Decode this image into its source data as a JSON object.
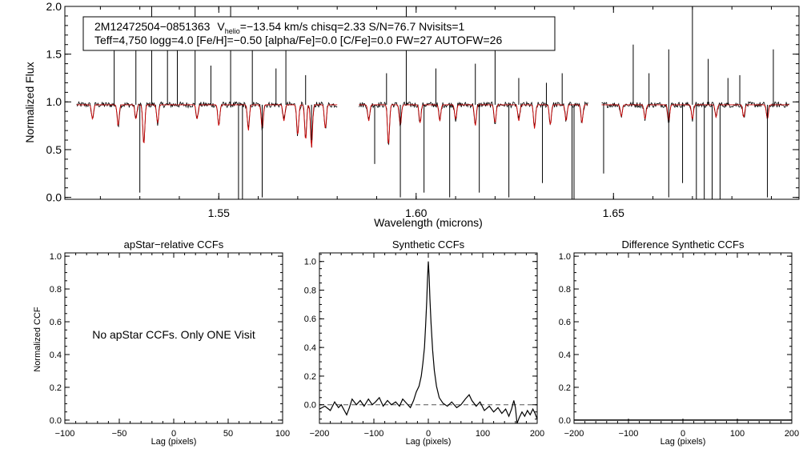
{
  "colors": {
    "observed": "#000000",
    "model": "#cc0000",
    "dash": "#555555"
  },
  "chart_data": [
    {
      "type": "line",
      "id": "spectrum",
      "title": "",
      "xlabel": "Wavelength (microns)",
      "ylabel": "Normalized Flux",
      "xlim": [
        1.511,
        1.697
      ],
      "ylim": [
        -0.02,
        2.0
      ],
      "xticks": [
        1.55,
        1.6,
        1.65
      ],
      "xtick_labels": [
        "1.55",
        "1.60",
        "1.65"
      ],
      "yticks": [
        0.0,
        0.5,
        1.0,
        1.5,
        2.0
      ],
      "ytick_labels": [
        "0.0",
        "0.5",
        "1.0",
        "1.5",
        "2.0"
      ],
      "chips": [
        [
          1.514,
          1.58
        ],
        [
          1.5855,
          1.6435
        ],
        [
          1.647,
          1.6945
        ]
      ],
      "annotation": {
        "line1_star": "2M12472504−0851363",
        "line1_v": "V",
        "line1_v_sub": "helio",
        "line1_rest": "=−13.54 km/s  chisq=2.33  S/N=76.7  Nvisits=1",
        "line2": "Teff=4,750 logg=4.0 [Fe/H]=−0.50 [alpha/Fe]=0.0 [C/Fe]=0.0 FW=27 AUTOFW=26"
      },
      "series": [
        {
          "name": "observed",
          "continuum": 0.97
        },
        {
          "name": "model",
          "continuum": 0.97
        }
      ],
      "emission_spikes": [
        [
          1.5235,
          1.55
        ],
        [
          1.529,
          1.75
        ],
        [
          1.533,
          2.0
        ],
        [
          1.537,
          1.62
        ],
        [
          1.5395,
          1.85
        ],
        [
          1.544,
          2.0
        ],
        [
          1.548,
          1.38
        ],
        [
          1.553,
          2.0
        ],
        [
          1.5585,
          1.55
        ],
        [
          1.5645,
          1.35
        ],
        [
          1.567,
          1.65
        ],
        [
          1.572,
          1.28
        ],
        [
          1.5925,
          1.3
        ],
        [
          1.5975,
          2.0
        ],
        [
          1.605,
          1.35
        ],
        [
          1.615,
          1.4
        ],
        [
          1.62,
          1.75
        ],
        [
          1.626,
          1.25
        ],
        [
          1.633,
          1.2
        ],
        [
          1.637,
          1.3
        ],
        [
          1.655,
          1.6
        ],
        [
          1.659,
          1.3
        ],
        [
          1.664,
          1.55
        ],
        [
          1.67,
          2.0
        ],
        [
          1.674,
          1.45
        ],
        [
          1.679,
          1.25
        ],
        [
          1.682,
          1.28
        ],
        [
          1.6905,
          1.55
        ]
      ],
      "deep_absorptions": [
        [
          1.53,
          0.05
        ],
        [
          1.555,
          -0.02
        ],
        [
          1.556,
          -0.02
        ],
        [
          1.561,
          0.0
        ],
        [
          1.5735,
          0.6
        ],
        [
          1.5895,
          0.35
        ],
        [
          1.596,
          0.0
        ],
        [
          1.602,
          0.05
        ],
        [
          1.6085,
          0.0
        ],
        [
          1.616,
          0.05
        ],
        [
          1.6235,
          0.0
        ],
        [
          1.632,
          0.15
        ],
        [
          1.6395,
          -0.02
        ],
        [
          1.64,
          -0.02
        ],
        [
          1.6475,
          0.25
        ],
        [
          1.664,
          0.0
        ],
        [
          1.6675,
          0.15
        ],
        [
          1.671,
          -0.02
        ],
        [
          1.673,
          -0.02
        ],
        [
          1.675,
          -0.02
        ],
        [
          1.677,
          -0.02
        ],
        [
          1.689,
          0.0
        ]
      ],
      "model_absorptions": [
        [
          1.518,
          0.82
        ],
        [
          1.5245,
          0.75
        ],
        [
          1.529,
          0.82
        ],
        [
          1.531,
          0.55
        ],
        [
          1.5345,
          0.78
        ],
        [
          1.5445,
          0.82
        ],
        [
          1.55,
          0.75
        ],
        [
          1.5575,
          0.7
        ],
        [
          1.561,
          0.72
        ],
        [
          1.5665,
          0.8
        ],
        [
          1.57,
          0.65
        ],
        [
          1.572,
          0.6
        ],
        [
          1.5735,
          0.52
        ],
        [
          1.577,
          0.72
        ],
        [
          1.588,
          0.8
        ],
        [
          1.593,
          0.55
        ],
        [
          1.596,
          0.75
        ],
        [
          1.601,
          0.78
        ],
        [
          1.606,
          0.8
        ],
        [
          1.61,
          0.82
        ],
        [
          1.615,
          0.75
        ],
        [
          1.62,
          0.78
        ],
        [
          1.626,
          0.8
        ],
        [
          1.63,
          0.72
        ],
        [
          1.634,
          0.76
        ],
        [
          1.638,
          0.8
        ],
        [
          1.642,
          0.78
        ],
        [
          1.652,
          0.85
        ],
        [
          1.658,
          0.82
        ],
        [
          1.664,
          0.8
        ],
        [
          1.67,
          0.82
        ],
        [
          1.676,
          0.84
        ],
        [
          1.683,
          0.84
        ],
        [
          1.689,
          0.82
        ]
      ]
    },
    {
      "type": "line",
      "id": "apstar-ccf",
      "title": "apStar−relative CCFs",
      "xlabel": "Lag (pixels)",
      "ylabel": "Normalized CCF",
      "xlim": [
        -100,
        100
      ],
      "ylim": [
        -0.02,
        1.02
      ],
      "xticks": [
        -100,
        -50,
        0,
        50,
        100
      ],
      "xtick_labels": [
        "−100",
        "−50",
        "0",
        "50",
        "100"
      ],
      "yticks": [
        0.0,
        0.2,
        0.4,
        0.6,
        0.8,
        1.0
      ],
      "ytick_labels": [
        "0.0",
        "0.2",
        "0.4",
        "0.6",
        "0.8",
        "1.0"
      ],
      "message": "No apStar CCFs.  Only ONE Visit"
    },
    {
      "type": "line",
      "id": "synthetic-ccf",
      "title": "Synthetic CCFs",
      "xlabel": "Lag (pixels)",
      "ylabel": "",
      "xlim": [
        -200,
        200
      ],
      "ylim": [
        -0.13,
        1.06
      ],
      "xticks": [
        -200,
        -100,
        0,
        100,
        200
      ],
      "xtick_labels": [
        "−200",
        "−100",
        "0",
        "100",
        "200"
      ],
      "yticks": [
        0.0,
        0.2,
        0.4,
        0.6,
        0.8,
        1.0
      ],
      "ytick_labels": [
        "0.0",
        "0.2",
        "0.4",
        "0.6",
        "0.8",
        "1.0"
      ],
      "zero_line": 0.0,
      "series": [
        {
          "name": "ccf",
          "x": [
            -200,
            -190,
            -180,
            -172,
            -165,
            -160,
            -150,
            -145,
            -140,
            -132,
            -125,
            -118,
            -110,
            -103,
            -97,
            -90,
            -83,
            -75,
            -68,
            -60,
            -53,
            -47,
            -40,
            -33,
            -27,
            -22,
            -17,
            -13,
            -10,
            -7,
            -5,
            -3,
            -1.5,
            0,
            1.5,
            3,
            5,
            8,
            11,
            15,
            20,
            27,
            35,
            43,
            52,
            60,
            68,
            75,
            80,
            88,
            95,
            103,
            112,
            120,
            128,
            135,
            142,
            148,
            153,
            157,
            160,
            163,
            167,
            172,
            177,
            182,
            187,
            192,
            196,
            200
          ],
          "y": [
            -0.03,
            -0.01,
            -0.04,
            0.02,
            -0.02,
            0.0,
            -0.07,
            -0.02,
            0.04,
            0.0,
            0.03,
            -0.01,
            0.04,
            0.0,
            0.02,
            0.05,
            -0.01,
            0.03,
            0.0,
            0.02,
            -0.01,
            0.04,
            0.01,
            -0.02,
            0.03,
            0.09,
            0.13,
            0.2,
            0.29,
            0.4,
            0.55,
            0.72,
            0.88,
            1.0,
            0.9,
            0.74,
            0.57,
            0.38,
            0.24,
            0.13,
            0.05,
            0.01,
            -0.01,
            0.02,
            -0.02,
            0.0,
            0.04,
            0.07,
            0.03,
            -0.01,
            0.02,
            -0.04,
            -0.01,
            -0.05,
            -0.02,
            -0.06,
            -0.03,
            -0.08,
            -0.03,
            0.03,
            -0.02,
            -0.13,
            -0.09,
            -0.05,
            -0.08,
            -0.04,
            -0.07,
            -0.03,
            -0.06,
            -0.1
          ]
        }
      ]
    },
    {
      "type": "line",
      "id": "difference-ccf",
      "title": "Difference Synthetic CCFs",
      "xlabel": "Lag (pixels)",
      "ylabel": "",
      "xlim": [
        -200,
        200
      ],
      "ylim": [
        -0.02,
        1.02
      ],
      "xticks": [
        -200,
        -100,
        0,
        100,
        200
      ],
      "xtick_labels": [
        "−200",
        "−100",
        "0",
        "100",
        "200"
      ],
      "yticks": [
        0.0,
        0.2,
        0.4,
        0.6,
        0.8,
        1.0
      ],
      "ytick_labels": [
        "0.0",
        "0.2",
        "0.4",
        "0.6",
        "0.8",
        "1.0"
      ],
      "series": [
        {
          "name": "difference",
          "x": [
            -200,
            200
          ],
          "y": [
            0.0,
            0.0
          ]
        }
      ]
    }
  ]
}
